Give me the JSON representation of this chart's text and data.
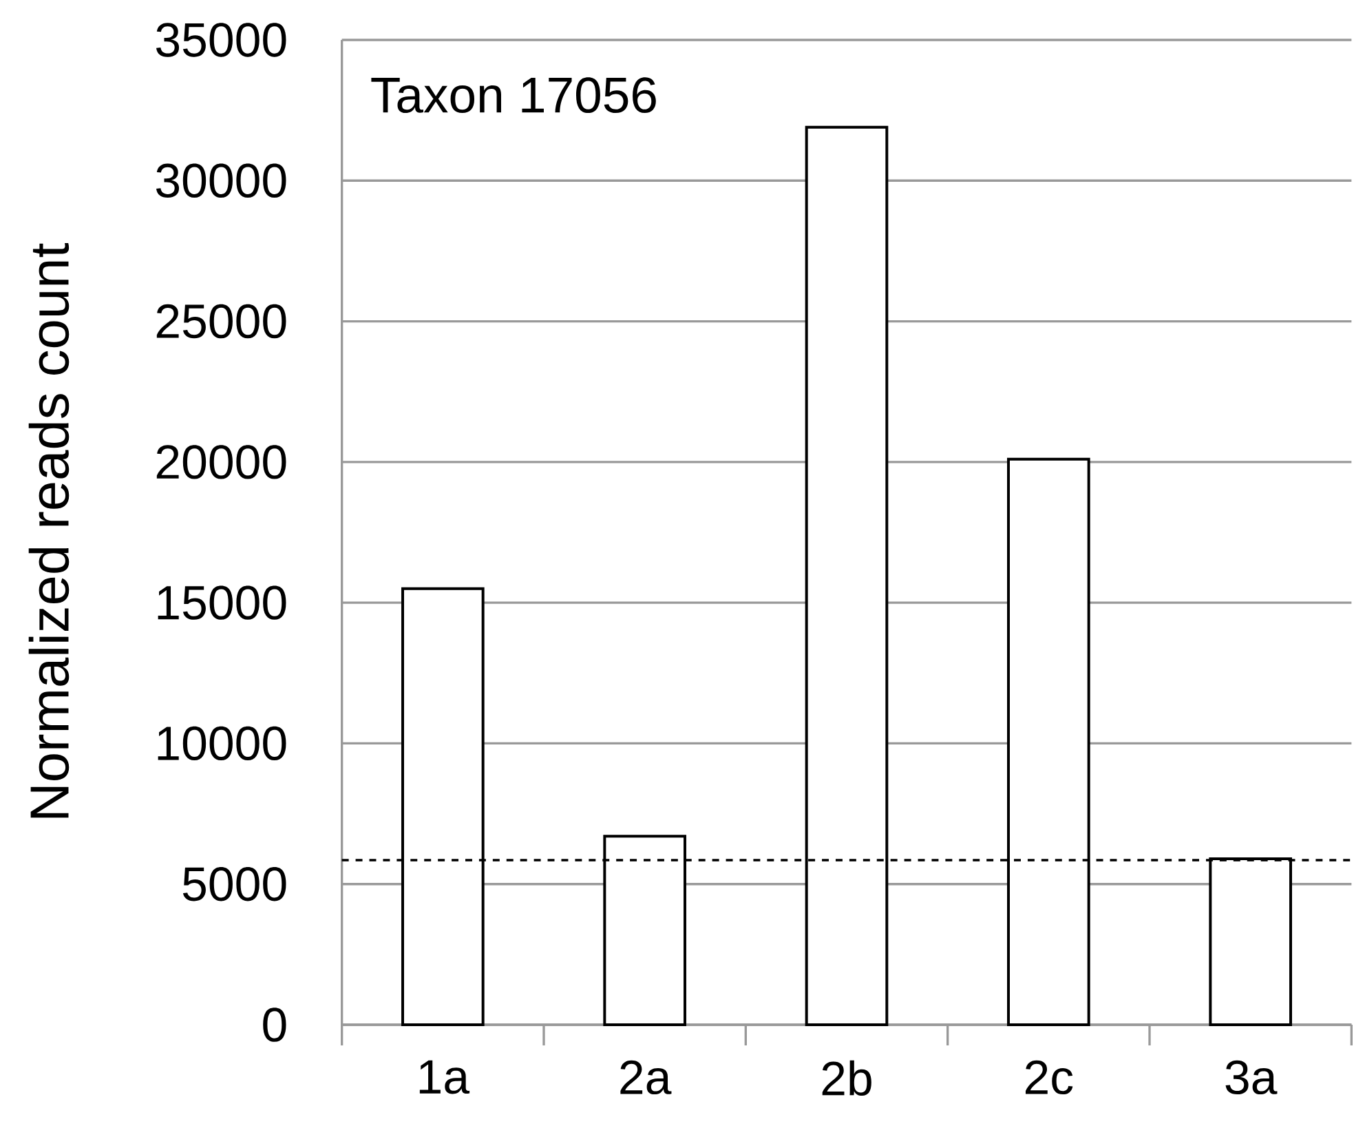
{
  "chart_data": {
    "type": "bar",
    "title": "Taxon 17056",
    "ylabel": "Normalized reads count",
    "categories": [
      "1a",
      "2a",
      "2b",
      "2c",
      "3a"
    ],
    "values": [
      15500,
      6700,
      31900,
      20100,
      5900
    ],
    "color": "#ffffff",
    "ylim": [
      0,
      35000
    ],
    "yticks": [
      0,
      5000,
      10000,
      15000,
      20000,
      25000,
      30000,
      35000
    ],
    "grid": "y",
    "ref_lines": [
      {
        "axis": "y",
        "value": 5850,
        "color": "#000000",
        "line_style": "dashed"
      }
    ]
  }
}
